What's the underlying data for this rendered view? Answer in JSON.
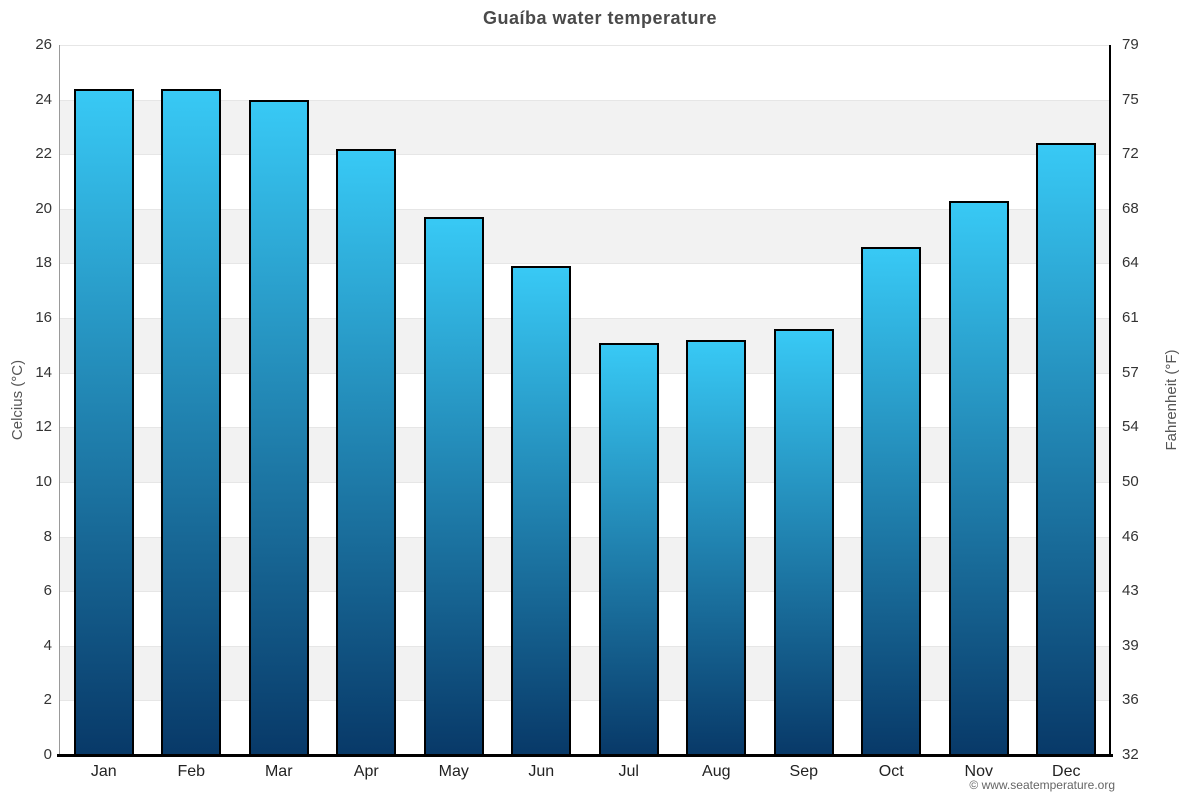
{
  "title": "Guaíba water temperature",
  "axes": {
    "left_label": "Celcius (°C)",
    "right_label": "Fahrenheit (°F)",
    "celsius_ticks": [
      26,
      24,
      22,
      20,
      18,
      16,
      14,
      12,
      10,
      8,
      6,
      4,
      2,
      0
    ],
    "fahrenheit_ticks": [
      79,
      75,
      72,
      68,
      64,
      61,
      57,
      54,
      50,
      46,
      43,
      39,
      36,
      32
    ]
  },
  "chart_data": {
    "type": "bar",
    "title": "Guaíba water temperature",
    "categories": [
      "Jan",
      "Feb",
      "Mar",
      "Apr",
      "May",
      "Jun",
      "Jul",
      "Aug",
      "Sep",
      "Oct",
      "Nov",
      "Dec"
    ],
    "values": [
      24.4,
      24.4,
      24.0,
      22.2,
      19.7,
      17.9,
      15.1,
      15.2,
      15.6,
      18.6,
      20.3,
      22.4
    ],
    "xlabel": "",
    "ylabel": "Celcius (°C)",
    "ylabel_right": "Fahrenheit (°F)",
    "ylim": [
      0,
      26
    ],
    "tick_step": 2,
    "grid": true,
    "plot_band_style": "alternating gray/white horizontal bands every 2°C",
    "legend": "none"
  },
  "footer": {
    "copyright": "© www.seatemperature.org"
  },
  "colors": {
    "bar_gradient_top": "#38c9f5",
    "bar_gradient_bottom": "#083968",
    "bar_border": "#000000",
    "band_gray": "#f2f2f2",
    "band_white": "#ffffff",
    "gridline": "#e6e6e6",
    "title_text": "#4a4a4a",
    "tick_text": "#333333",
    "axis_title_text": "#555555",
    "copyright_text": "#666666"
  }
}
